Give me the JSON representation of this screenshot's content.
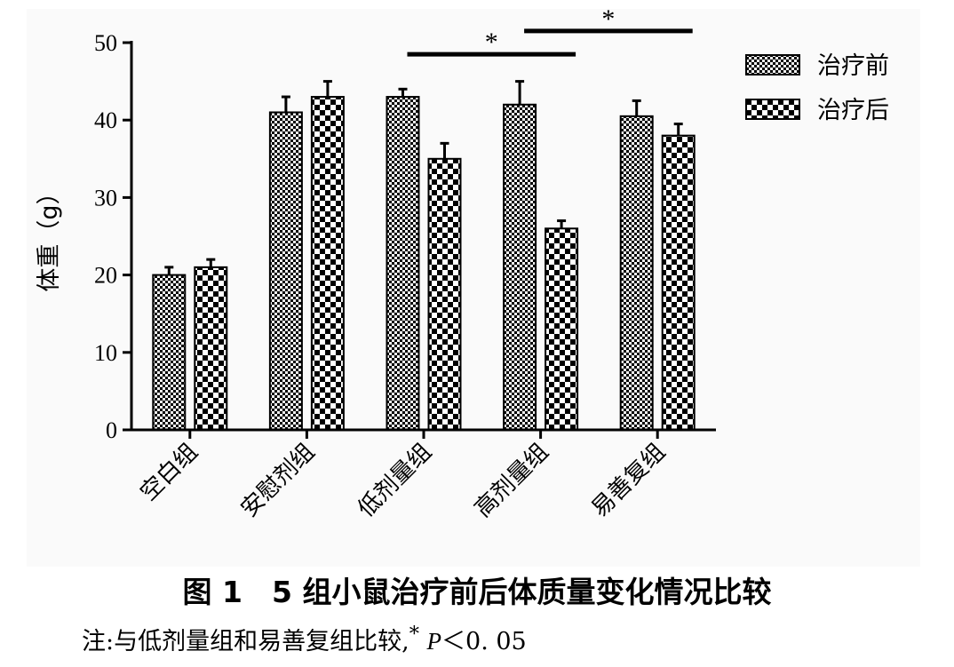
{
  "chart_data": {
    "type": "bar",
    "categories": [
      "空白组",
      "安慰剂组",
      "低剂量组",
      "高剂量组",
      "易善复组"
    ],
    "series": [
      {
        "name": "治疗前",
        "values": [
          20,
          41,
          43,
          42,
          40.5
        ],
        "errors": [
          1,
          2,
          1,
          3,
          2
        ]
      },
      {
        "name": "治疗后",
        "values": [
          21,
          43,
          35,
          26,
          38
        ],
        "errors": [
          1,
          2,
          2,
          1,
          1.5
        ]
      }
    ],
    "ylabel": "体重（g）",
    "xlabel": "",
    "ylim": [
      0,
      50
    ],
    "yticks": [
      0,
      10,
      20,
      30,
      40,
      50
    ],
    "legend_position": "top-right",
    "grid": false,
    "significance": [
      {
        "from_category": "低剂量组",
        "to_category": "高剂量组",
        "label": "*"
      },
      {
        "from_category": "高剂量组",
        "to_category": "易善复组",
        "label": "*"
      }
    ]
  },
  "caption": "图 1　5 组小鼠治疗前后体质量变化情况比较",
  "note": {
    "prefix": "注:与低剂量组和易善复组比较,",
    "star": "*",
    "p_symbol": "P",
    "suffix": "＜0. 05"
  }
}
